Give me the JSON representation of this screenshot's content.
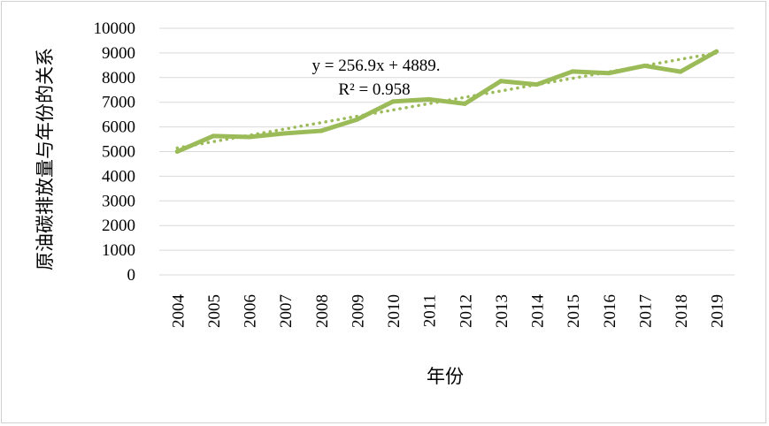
{
  "chart_data": {
    "type": "line",
    "title": "",
    "xlabel": "年份",
    "ylabel": "原油碳排放量与年份的关系",
    "categories": [
      "2004",
      "2005",
      "2006",
      "2007",
      "2008",
      "2009",
      "2010",
      "2011",
      "2012",
      "2013",
      "2014",
      "2015",
      "2016",
      "2017",
      "2018",
      "2019"
    ],
    "series": [
      {
        "values": [
          5000,
          5630,
          5590,
          5740,
          5840,
          6300,
          7030,
          7120,
          6940,
          7860,
          7720,
          8250,
          8180,
          8480,
          8240,
          9060
        ],
        "color": "#9bbb59"
      }
    ],
    "trendline": {
      "type": "linear",
      "slope": 256.9,
      "intercept": 4889,
      "equation": "y = 256.9x + 4889.",
      "r_squared": "R² = 0.958",
      "color": "#9bbb59",
      "style": "dotted"
    },
    "ylim": [
      0,
      10000
    ],
    "yticks": [
      "0",
      "1000",
      "2000",
      "3000",
      "4000",
      "5000",
      "6000",
      "7000",
      "8000",
      "9000",
      "10000"
    ],
    "grid": true,
    "legend": "none"
  }
}
